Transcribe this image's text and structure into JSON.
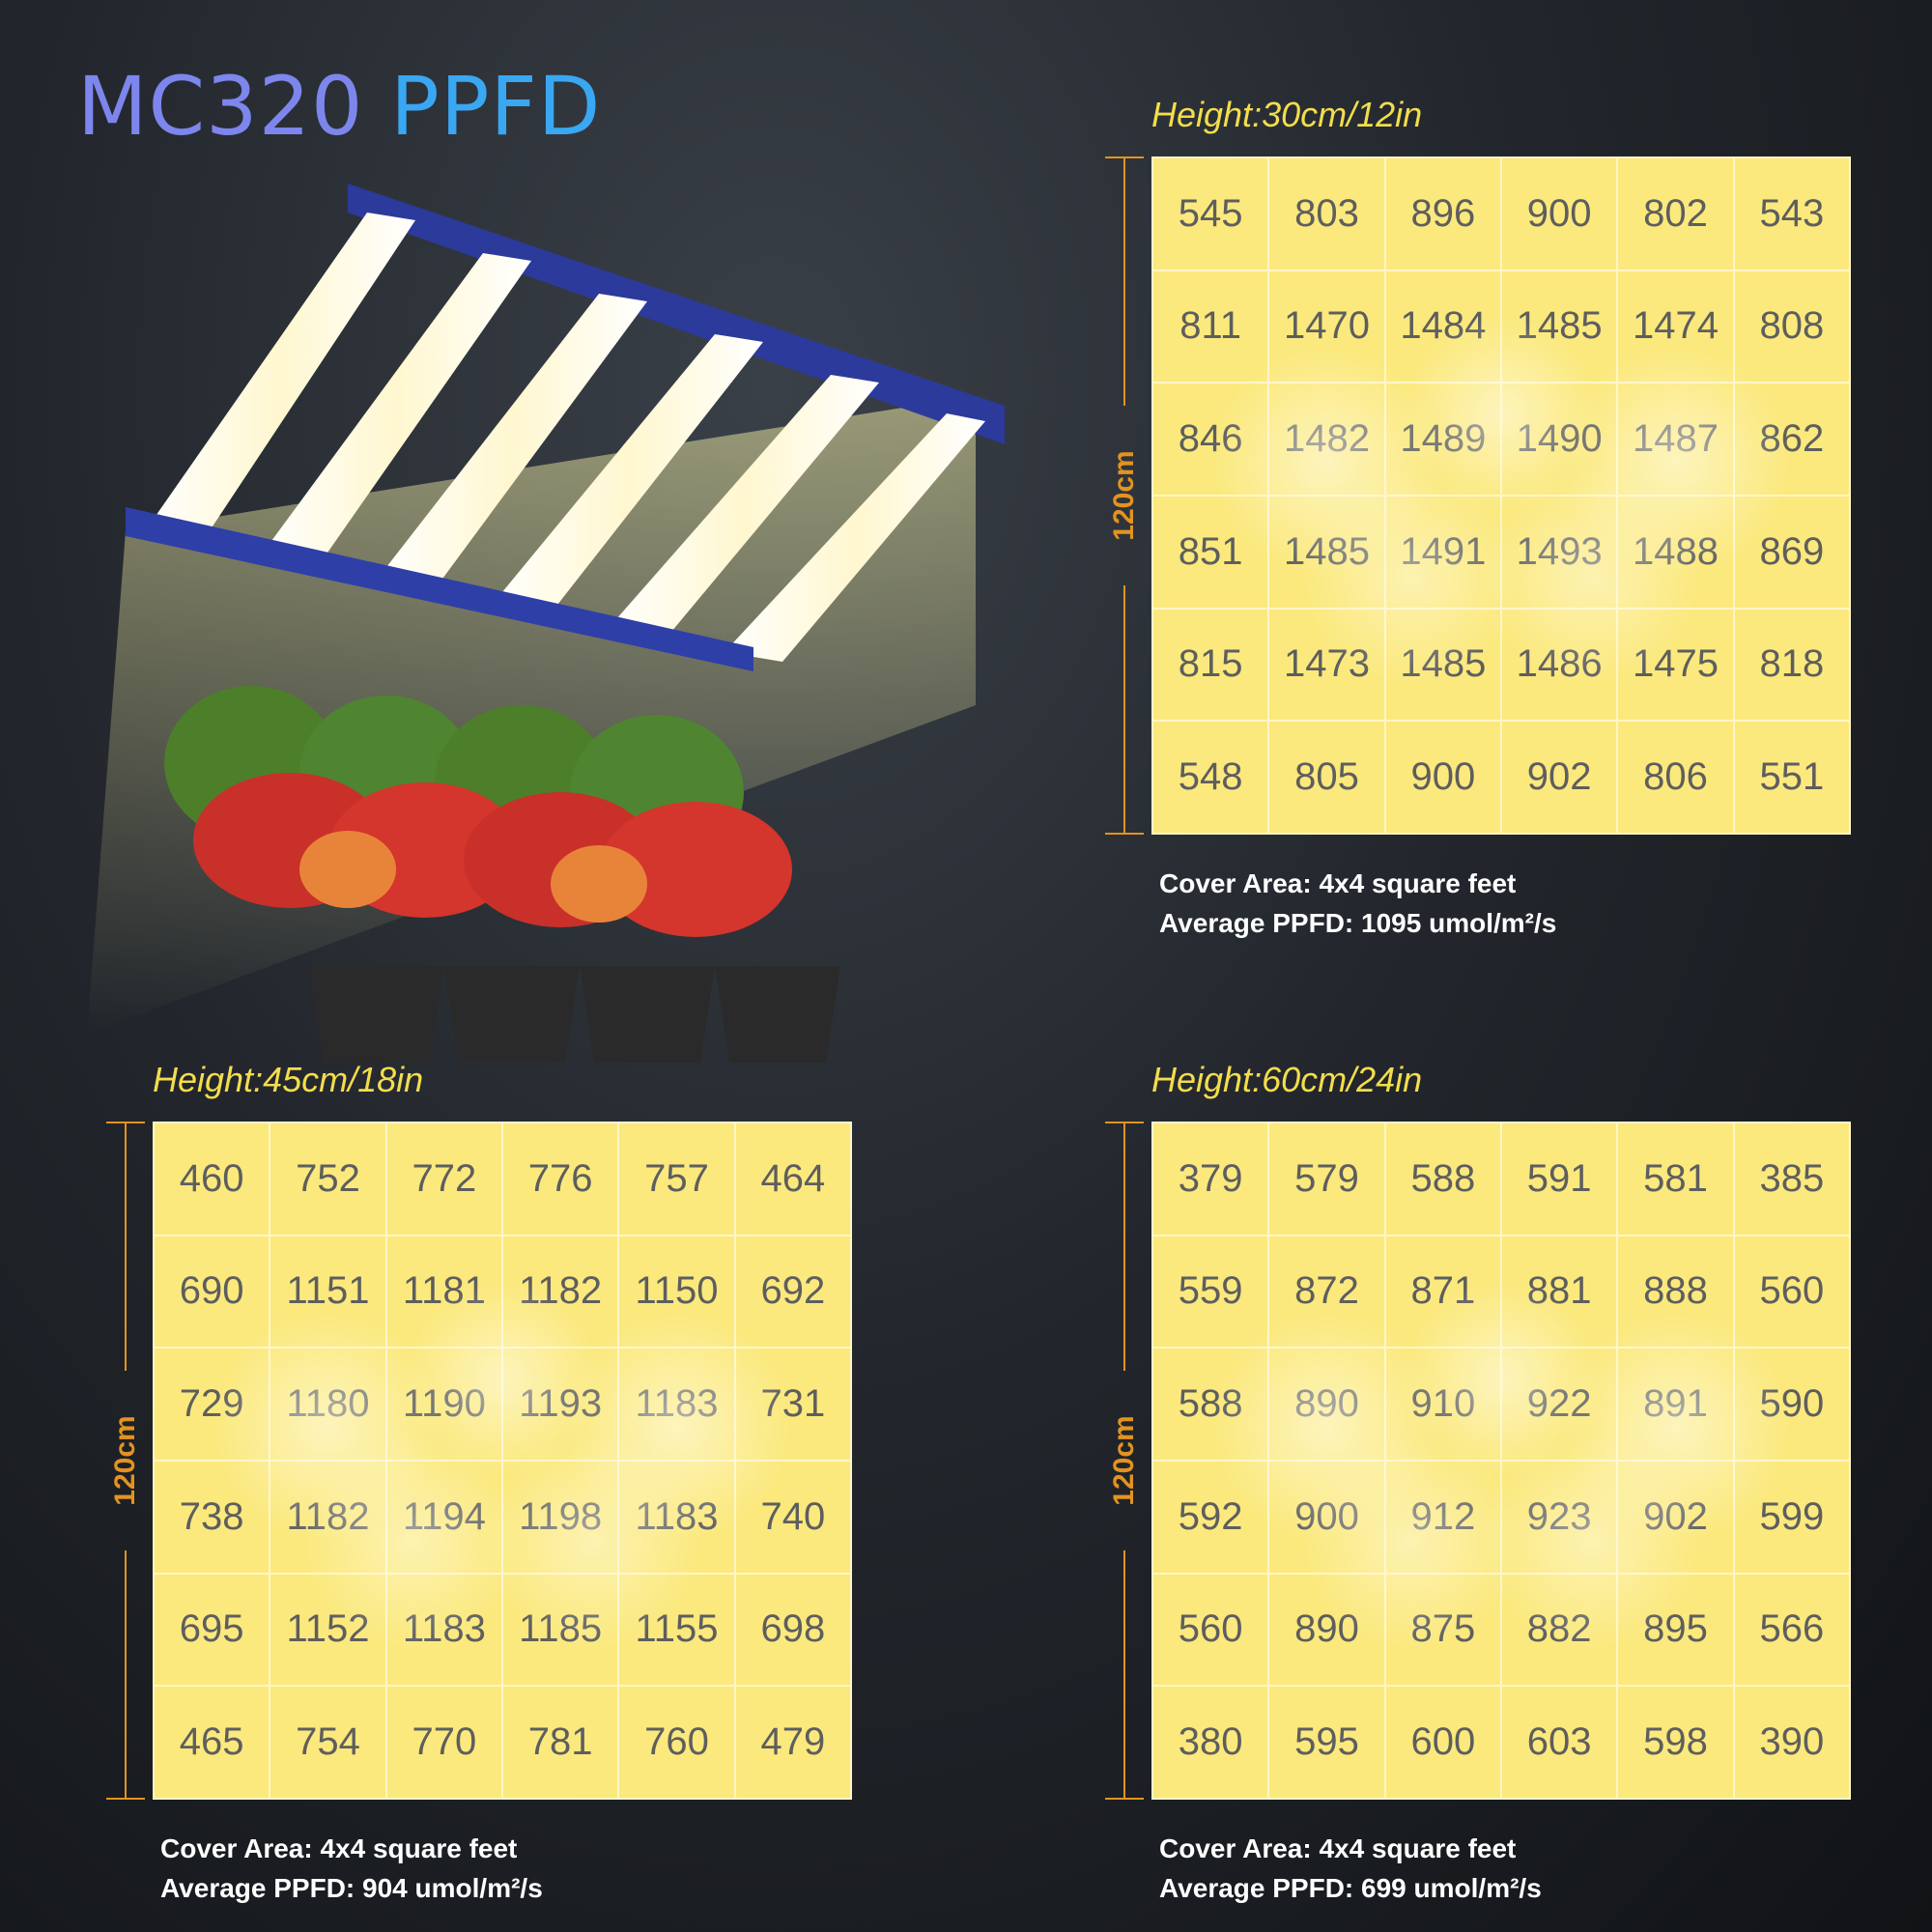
{
  "title": {
    "part1": "MC320",
    "part2": "PPFD"
  },
  "chart_data": [
    {
      "type": "heatmap",
      "height_label": "Height:30cm/12in",
      "dimension_label": "120cm",
      "cover_area": "Cover Area: 4x4 square feet",
      "average_ppfd": "Average PPFD: 1095 umol/m²/s",
      "values": [
        [
          545,
          803,
          896,
          900,
          802,
          543
        ],
        [
          811,
          1470,
          1484,
          1485,
          1474,
          808
        ],
        [
          846,
          1482,
          1489,
          1490,
          1487,
          862
        ],
        [
          851,
          1485,
          1491,
          1493,
          1488,
          869
        ],
        [
          815,
          1473,
          1485,
          1486,
          1475,
          818
        ],
        [
          548,
          805,
          900,
          902,
          806,
          551
        ]
      ]
    },
    {
      "type": "heatmap",
      "height_label": "Height:45cm/18in",
      "dimension_label": "120cm",
      "cover_area": "Cover Area: 4x4 square feet",
      "average_ppfd": "Average PPFD: 904 umol/m²/s",
      "values": [
        [
          460,
          752,
          772,
          776,
          757,
          464
        ],
        [
          690,
          1151,
          1181,
          1182,
          1150,
          692
        ],
        [
          729,
          1180,
          1190,
          1193,
          1183,
          731
        ],
        [
          738,
          1182,
          1194,
          1198,
          1183,
          740
        ],
        [
          695,
          1152,
          1183,
          1185,
          1155,
          698
        ],
        [
          465,
          754,
          770,
          781,
          760,
          479
        ]
      ]
    },
    {
      "type": "heatmap",
      "height_label": "Height:60cm/24in",
      "dimension_label": "120cm",
      "cover_area": "Cover Area: 4x4 square feet",
      "average_ppfd": "Average PPFD: 699 umol/m²/s",
      "values": [
        [
          379,
          579,
          588,
          591,
          581,
          385
        ],
        [
          559,
          872,
          871,
          881,
          888,
          560
        ],
        [
          588,
          890,
          910,
          922,
          891,
          590
        ],
        [
          592,
          900,
          912,
          923,
          902,
          599
        ],
        [
          560,
          890,
          875,
          882,
          895,
          566
        ],
        [
          380,
          595,
          600,
          603,
          598,
          390
        ]
      ]
    }
  ]
}
